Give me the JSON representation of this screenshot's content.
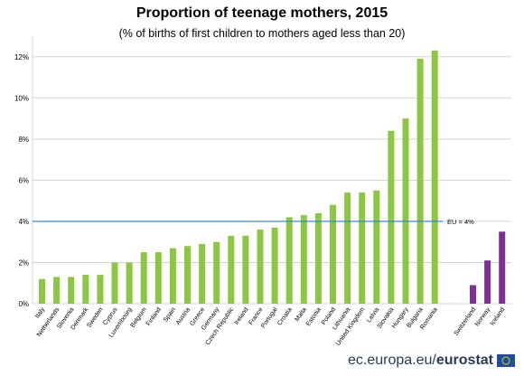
{
  "title": "Proportion of teenage mothers, 2015",
  "subtitle": "(% of births of first children to mothers aged less than 20)",
  "footer": {
    "site": "ec.europa.eu/",
    "brand": "eurostat"
  },
  "colors": {
    "eu": "#8dc63f",
    "efta": "#7b3294",
    "reference_line": "#2a7fd4",
    "grid": "#d4d4d4"
  },
  "chart_data": {
    "type": "bar",
    "title": "Proportion of teenage mothers, 2015",
    "subtitle": "(% of births of first children to mothers aged less than 20)",
    "xlabel": "",
    "ylabel": "",
    "ylim": [
      0,
      13
    ],
    "yticks": [
      "0%",
      "2%",
      "4%",
      "6%",
      "8%",
      "10%",
      "12%"
    ],
    "grid": true,
    "categories": [
      "Italy",
      "Netherlands",
      "Slovenia",
      "Denmark",
      "Sweden",
      "Cyprus",
      "Luxembourg",
      "Belgium",
      "Finland",
      "Spain",
      "Austria",
      "Greece",
      "Germany",
      "Czech Republic",
      "Ireland",
      "France",
      "Portugal",
      "Croatia",
      "Malta",
      "Estonia",
      "Poland",
      "Lithuania",
      "United Kingdom",
      "Latvia",
      "Slovakia",
      "Hungary",
      "Bulgaria",
      "Romania",
      "Switzerland",
      "Norway",
      "Iceland"
    ],
    "values": [
      1.2,
      1.3,
      1.3,
      1.4,
      1.4,
      2.0,
      2.0,
      2.5,
      2.5,
      2.7,
      2.8,
      2.9,
      3.0,
      3.3,
      3.3,
      3.6,
      3.7,
      4.2,
      4.3,
      4.4,
      4.8,
      5.4,
      5.4,
      5.5,
      8.4,
      9.0,
      11.9,
      12.3,
      0.9,
      2.1,
      3.5
    ],
    "groups": [
      "EU",
      "EU",
      "EU",
      "EU",
      "EU",
      "EU",
      "EU",
      "EU",
      "EU",
      "EU",
      "EU",
      "EU",
      "EU",
      "EU",
      "EU",
      "EU",
      "EU",
      "EU",
      "EU",
      "EU",
      "EU",
      "EU",
      "EU",
      "EU",
      "EU",
      "EU",
      "EU",
      "EU",
      "EFTA",
      "EFTA",
      "EFTA"
    ],
    "reference_line": {
      "value": 4,
      "label": "EU = 4%"
    }
  }
}
